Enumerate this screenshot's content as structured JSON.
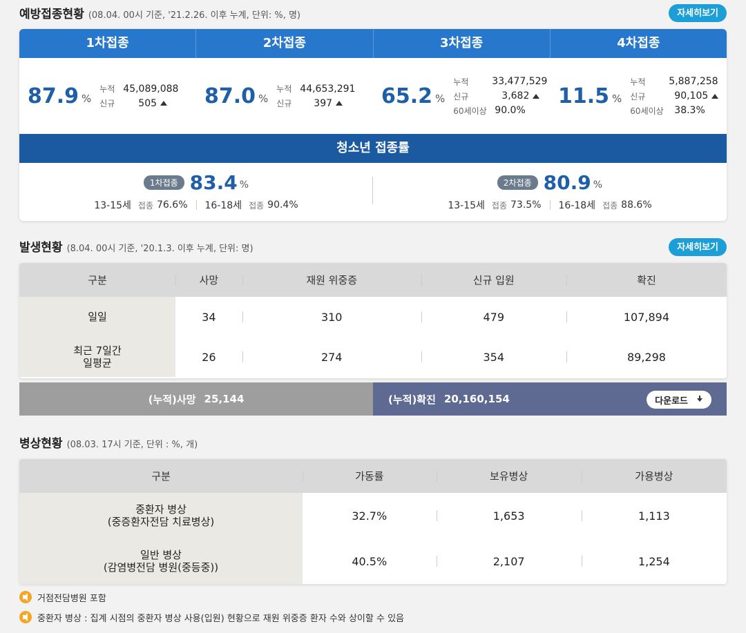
{
  "vaccination": {
    "title": "예방접종현황",
    "subtitle": "(08.04. 00시 기준, '21.2.26. 이후 누계, 단위: %, 명)",
    "more_label": "자세히보기",
    "doses": [
      {
        "header": "1차접종",
        "rate": "87.9",
        "pct": "%",
        "cum_label": "누적",
        "cum": "45,089,088",
        "new_label": "신규",
        "new": "505"
      },
      {
        "header": "2차접종",
        "rate": "87.0",
        "pct": "%",
        "cum_label": "누적",
        "cum": "44,653,291",
        "new_label": "신규",
        "new": "397"
      },
      {
        "header": "3차접종",
        "rate": "65.2",
        "pct": "%",
        "cum_label": "누적",
        "cum": "33,477,529",
        "new_label": "신규",
        "new": "3,682",
        "age_label": "60세이상",
        "age": "90.0%"
      },
      {
        "header": "4차접종",
        "rate": "11.5",
        "pct": "%",
        "cum_label": "누적",
        "cum": "5,887,258",
        "new_label": "신규",
        "new": "90,105",
        "age_label": "60세이상",
        "age": "38.3%"
      }
    ],
    "youth": {
      "title": "청소년 접종률",
      "items": [
        {
          "pill": "1차접종",
          "rate": "83.4",
          "pct": "%",
          "a_label": "13-15세",
          "a_g": "접종",
          "a_val": "76.6%",
          "b_label": "16-18세",
          "b_g": "접종",
          "b_val": "90.4%"
        },
        {
          "pill": "2차접종",
          "rate": "80.9",
          "pct": "%",
          "a_label": "13-15세",
          "a_g": "접종",
          "a_val": "73.5%",
          "b_label": "16-18세",
          "b_g": "접종",
          "b_val": "88.6%"
        }
      ]
    }
  },
  "occurrence": {
    "title": "발생현황",
    "subtitle": "(8.04. 00시 기준, '20.1.3. 이후 누계, 단위: 명)",
    "more_label": "자세히보기",
    "headers": [
      "구분",
      "사망",
      "재원 위중증",
      "신규 입원",
      "확진"
    ],
    "rows": [
      {
        "label": "일일",
        "values": [
          "34",
          "310",
          "479",
          "107,894"
        ]
      },
      {
        "label_l1": "최근 7일간",
        "label_l2": "일평균",
        "values": [
          "26",
          "274",
          "354",
          "89,298"
        ]
      }
    ],
    "cum_death_label": "(누적)사망",
    "cum_death": "25,144",
    "cum_conf_label": "(누적)확진",
    "cum_conf": "20,160,154",
    "download_label": "다운로드"
  },
  "beds": {
    "title": "병상현황",
    "subtitle": "(08.03. 17시 기준, 단위 : %, 개)",
    "headers": [
      "구분",
      "가동률",
      "보유병상",
      "가용병상"
    ],
    "rows": [
      {
        "l1": "중환자 병상",
        "l2": "(중증환자전담 치료병상)",
        "values": [
          "32.7%",
          "1,653",
          "1,113"
        ]
      },
      {
        "l1": "일반 병상",
        "l2": "(감염병전담 병원(중등중))",
        "values": [
          "40.5%",
          "2,107",
          "1,254"
        ]
      }
    ]
  },
  "notes": [
    "거점전담병원 포함",
    "중환자 병상 : 집계 시점의 중환자 병상 사용(입원) 현황으로 재원 위중증 환자 수와 상이할 수 있음"
  ]
}
